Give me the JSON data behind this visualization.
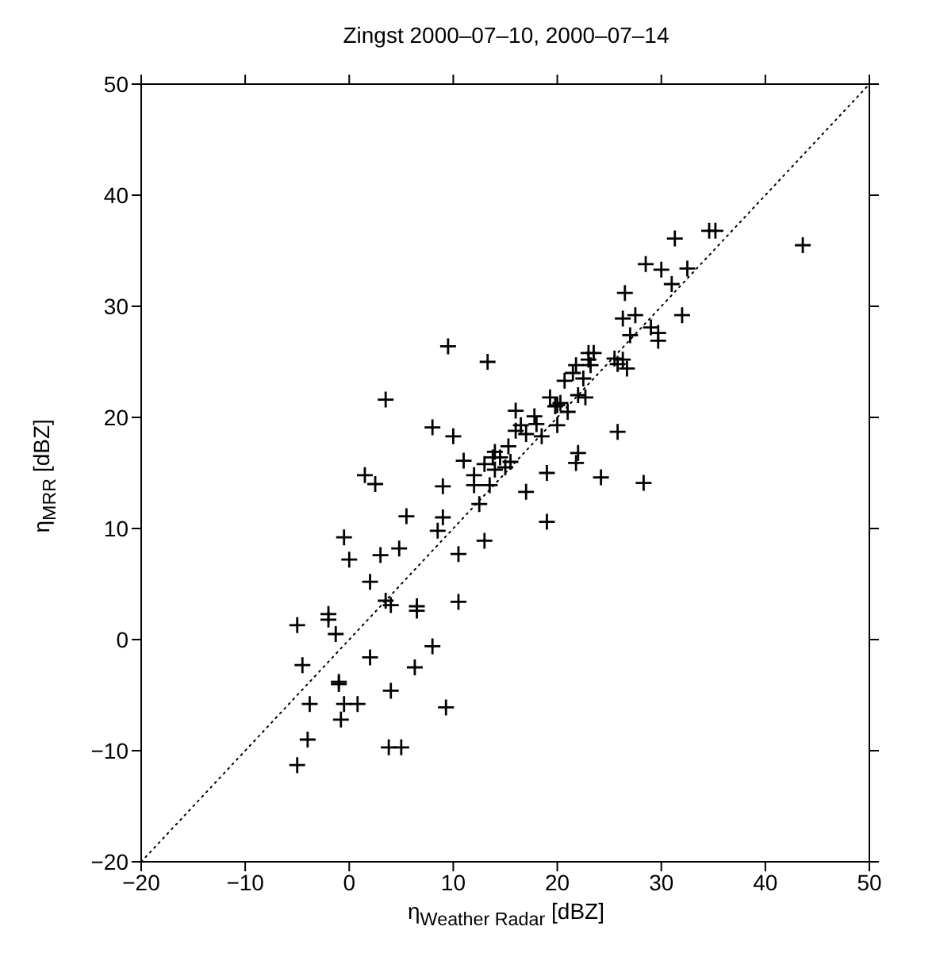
{
  "chart_data": {
    "type": "scatter",
    "title": "Zingst 2000–07–10, 2000–07–14",
    "xlabel": "η$_{Weather Radar}$ [dBZ]",
    "ylabel": "η$_{MRR}$ [dBZ]",
    "xlim": [
      -20,
      50
    ],
    "ylim": [
      -20,
      50
    ],
    "xticks": [
      -20,
      -10,
      0,
      10,
      20,
      30,
      40,
      50
    ],
    "yticks": [
      -20,
      -10,
      0,
      10,
      20,
      30,
      40,
      50
    ],
    "grid": false,
    "marker": "cross",
    "series": [
      {
        "color": "#000000",
        "x": [
          -5,
          -5,
          -4.5,
          -4,
          -3.8,
          -2,
          -2,
          -1.3,
          -1,
          -1,
          -0.8,
          -0.5,
          -0.5,
          0,
          0.8,
          1.5,
          2,
          2,
          2.5,
          3,
          3.5,
          3.5,
          3.8,
          4,
          4,
          4.8,
          5.5,
          5,
          6.3,
          6.5,
          6.5,
          8,
          8,
          8.5,
          9,
          9,
          9.3,
          9.5,
          10,
          10.5,
          10.5,
          11,
          12,
          12,
          12.5,
          13,
          13,
          13.3,
          13.5,
          13.8,
          14,
          14,
          14.5,
          15,
          15.3,
          15.5,
          16,
          16,
          16.5,
          17,
          17,
          17.8,
          18,
          18.5,
          19,
          19,
          19.3,
          19.8,
          20,
          20,
          20.3,
          20.7,
          21,
          21.5,
          21.8,
          21.8,
          22,
          22,
          22.5,
          22.7,
          23,
          23,
          23.2,
          23.5,
          24.2,
          25.8,
          25.5,
          25.8,
          26.3,
          26.3,
          26.5,
          26.7,
          27,
          27.5,
          28.3,
          28.5,
          29,
          29.7,
          29.7,
          30,
          31,
          31.3,
          32,
          32.5,
          34.6,
          35.2,
          43.6
        ],
        "values": [
          1.3,
          -11.3,
          -2.3,
          -9,
          -5.8,
          2.3,
          1.8,
          0.5,
          -4,
          -3.8,
          -7.2,
          -5.8,
          9.2,
          7.2,
          -5.8,
          14.8,
          5.2,
          -1.6,
          14,
          7.6,
          21.6,
          3.5,
          -9.7,
          3.1,
          -4.6,
          8.2,
          11.1,
          -9.7,
          -2.5,
          3,
          2.6,
          -0.6,
          19.1,
          9.8,
          13.8,
          11,
          -6.1,
          26.4,
          18.3,
          7.7,
          3.4,
          16.1,
          13.9,
          14.8,
          12.2,
          8.9,
          15.8,
          25,
          13.9,
          16.4,
          15.3,
          16.9,
          16.4,
          15.5,
          17.4,
          16,
          20.6,
          18.8,
          19.3,
          13.3,
          18.5,
          20.1,
          19.4,
          18.3,
          15,
          10.6,
          21.8,
          21,
          19.3,
          21.1,
          21.3,
          23.3,
          20.5,
          24,
          24.7,
          15.9,
          16.8,
          22,
          23.5,
          21.8,
          25.2,
          25.8,
          24.7,
          25.8,
          14.6,
          18.7,
          25.3,
          24.8,
          25.2,
          28.9,
          31.2,
          24.4,
          27.4,
          29.2,
          14.1,
          33.8,
          28.1,
          27.6,
          26.9,
          33.3,
          32,
          36.1,
          29.2,
          33.4,
          36.8,
          36.8,
          35.5
        ]
      },
      {
        "type": "line",
        "color": "#000000",
        "line_style": "dotted",
        "marker": "none",
        "x": [
          -20,
          50
        ],
        "values": [
          -20,
          50
        ]
      }
    ]
  }
}
